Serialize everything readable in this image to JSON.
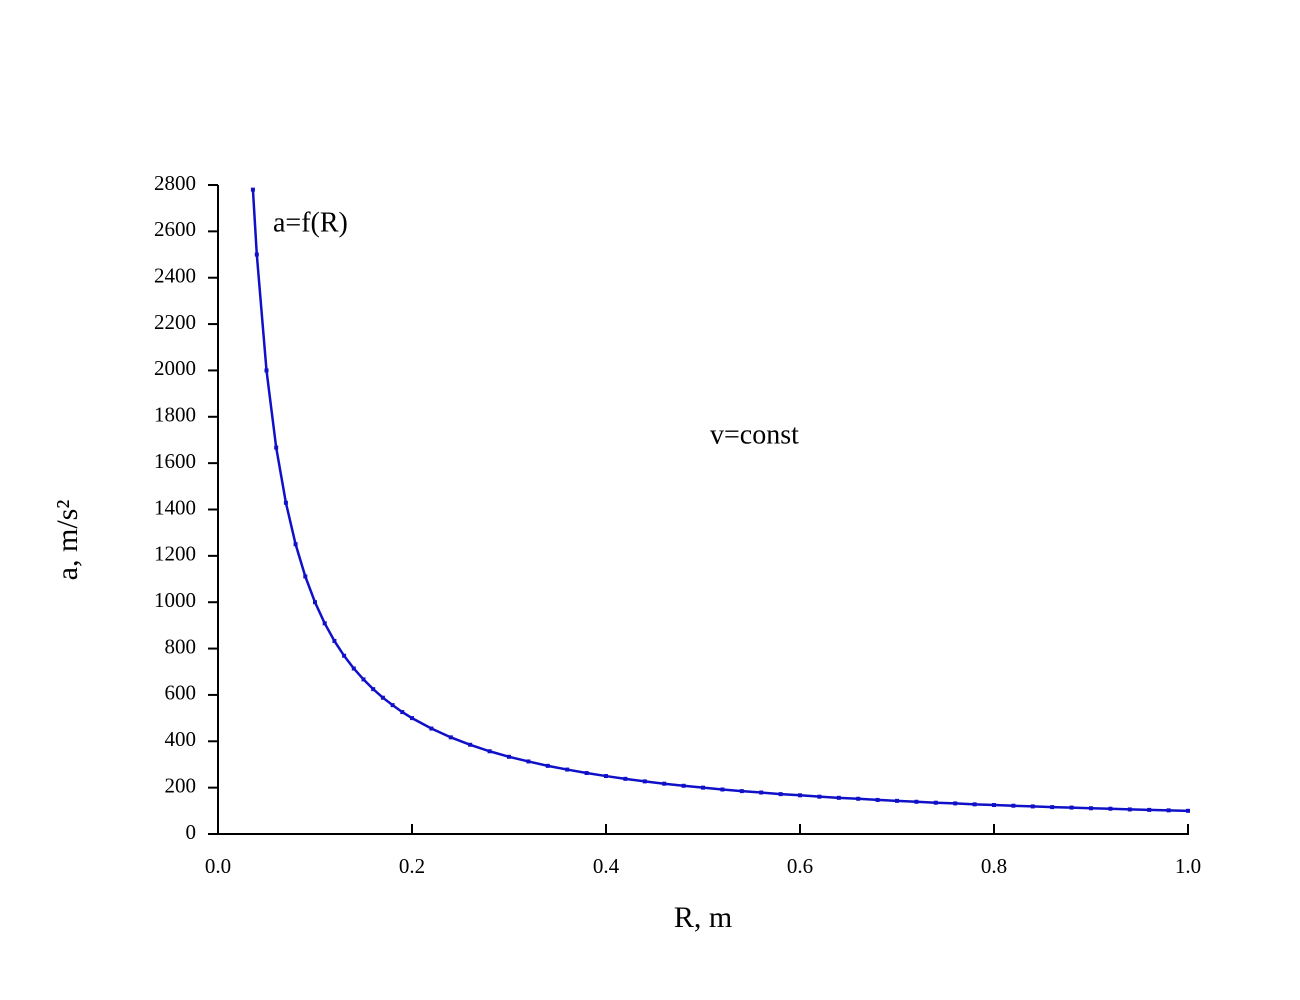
{
  "chart_data": {
    "type": "line",
    "xlabel": "R, m",
    "ylabel": "a, m/s²",
    "annotations": [
      "a=f(R)",
      "v=const"
    ],
    "x": [
      0.036,
      0.04,
      0.05,
      0.06,
      0.07,
      0.08,
      0.09,
      0.1,
      0.11,
      0.12,
      0.13,
      0.14,
      0.15,
      0.16,
      0.17,
      0.18,
      0.19,
      0.2,
      0.22,
      0.24,
      0.26,
      0.28,
      0.3,
      0.32,
      0.34,
      0.36,
      0.38,
      0.4,
      0.42,
      0.44,
      0.46,
      0.48,
      0.5,
      0.52,
      0.54,
      0.56,
      0.58,
      0.6,
      0.62,
      0.64,
      0.66,
      0.68,
      0.7,
      0.72,
      0.74,
      0.76,
      0.78,
      0.8,
      0.82,
      0.84,
      0.86,
      0.88,
      0.9,
      0.92,
      0.94,
      0.96,
      0.98,
      1.0
    ],
    "series": [
      {
        "color": "#1010c8",
        "values": [
          2780,
          2500,
          2000,
          1667,
          1429,
          1250,
          1111,
          1000,
          909,
          833,
          769,
          714,
          667,
          625,
          588,
          556,
          526,
          500,
          455,
          417,
          385,
          357,
          333,
          313,
          294,
          278,
          263,
          250,
          238,
          227,
          217,
          208,
          200,
          192,
          185,
          179,
          172,
          167,
          161,
          156,
          152,
          147,
          143,
          139,
          135,
          132,
          128,
          125,
          122,
          119,
          116,
          114,
          111,
          109,
          106,
          104,
          102,
          100
        ]
      }
    ],
    "xlim": [
      0,
      1.0
    ],
    "xticks": [
      {
        "value": 0,
        "label": "0.0"
      },
      0.2,
      0.4,
      0.6,
      0.8,
      {
        "value": 1,
        "label": "1.0"
      }
    ],
    "ylim": [
      0,
      2800
    ],
    "yticks": [
      0,
      200,
      400,
      600,
      800,
      1000,
      1200,
      1400,
      1600,
      1800,
      2000,
      2200,
      2400,
      2600,
      2800
    ]
  }
}
